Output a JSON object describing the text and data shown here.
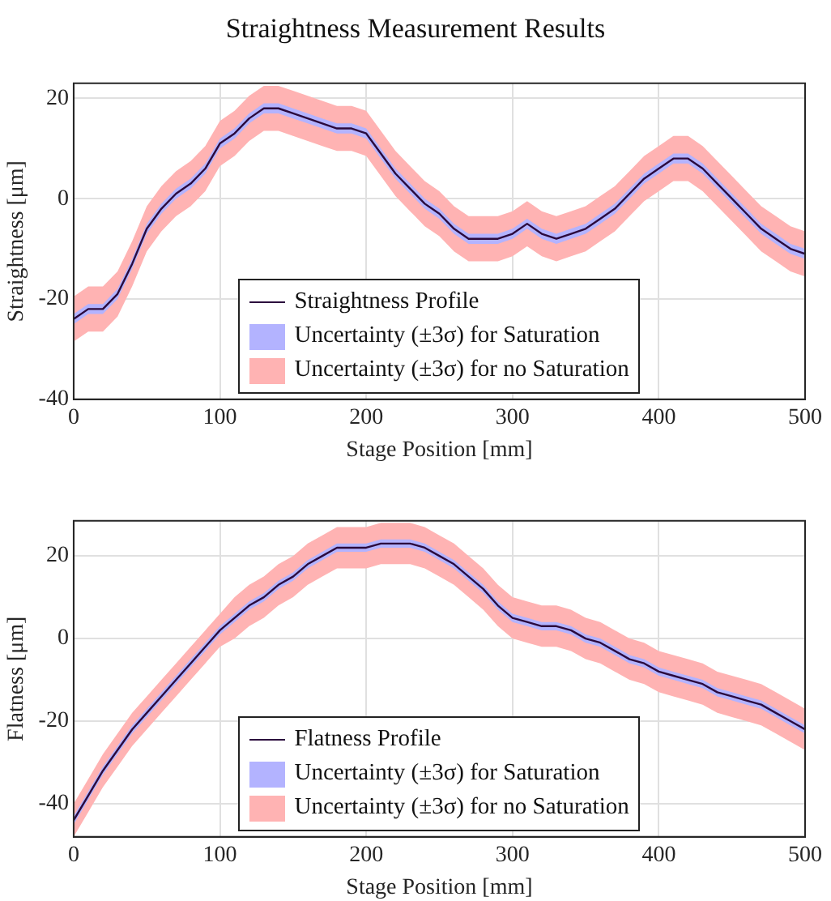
{
  "chart_data": [
    {
      "type": "line",
      "title": "Straightness Measurement Results",
      "xlabel": "Stage Position [mm]",
      "ylabel": "Straightness [μm]",
      "x": [
        0,
        10,
        20,
        30,
        40,
        50,
        60,
        70,
        80,
        90,
        100,
        110,
        120,
        130,
        140,
        150,
        160,
        170,
        180,
        190,
        200,
        210,
        220,
        230,
        240,
        250,
        260,
        270,
        280,
        290,
        300,
        310,
        320,
        330,
        340,
        350,
        360,
        370,
        380,
        390,
        400,
        410,
        420,
        430,
        440,
        450,
        460,
        470,
        480,
        490,
        500
      ],
      "xlim": [
        0,
        500
      ],
      "xticks": [
        0,
        100,
        200,
        300,
        400,
        500
      ],
      "ylim": [
        -40,
        23
      ],
      "yticks": [
        -40,
        -20,
        0,
        20
      ],
      "grid": true,
      "legend": "bottom",
      "marker": "none",
      "series": [
        {
          "name": "Straightness Profile",
          "type": "line",
          "color": "#2b0a3d",
          "values": [
            -24,
            -22,
            -22,
            -19,
            -13,
            -6,
            -2,
            1,
            3,
            6,
            11,
            13,
            16,
            18,
            18,
            17,
            16,
            15,
            14,
            14,
            13,
            9,
            5,
            2,
            -1,
            -3,
            -6,
            -8,
            -8,
            -8,
            -7,
            -5,
            -7,
            -8,
            -7,
            -6,
            -4,
            -2,
            1,
            4,
            6,
            8,
            8,
            6,
            3,
            0,
            -3,
            -6,
            -8,
            -10,
            -11
          ]
        },
        {
          "name": "Uncertainty (±3σ) for Saturation",
          "type": "line",
          "color": "#b3b3ff",
          "values": [
            null,
            null,
            null,
            null,
            null,
            null,
            null,
            null,
            null,
            null,
            null,
            null,
            null,
            null,
            null,
            null,
            null,
            null,
            null,
            null,
            null,
            null,
            null,
            null,
            null,
            null,
            null,
            null,
            null,
            null,
            null,
            null,
            null,
            null,
            null,
            null,
            null,
            null,
            null,
            null,
            null,
            null,
            null,
            null,
            null,
            null,
            null,
            null,
            null,
            null,
            null
          ],
          "lower": [
            -25,
            -23,
            -23,
            -20,
            -14,
            -7,
            -3,
            0,
            2,
            5,
            10,
            12,
            15,
            17,
            17,
            16,
            15,
            14,
            13,
            13,
            12,
            8,
            4,
            1,
            -2,
            -4,
            -7,
            -9,
            -9,
            -9,
            -8,
            -6,
            -8,
            -9,
            -8,
            -7,
            -5,
            -3,
            0,
            3,
            5,
            7,
            7,
            5,
            2,
            -1,
            -4,
            -7,
            -9,
            -11,
            -12
          ],
          "upper": [
            -23,
            -21,
            -21,
            -18,
            -12,
            -5,
            -1,
            2,
            4,
            7,
            12,
            14,
            17,
            19,
            19,
            18,
            17,
            16,
            15,
            15,
            14,
            10,
            6,
            3,
            0,
            -2,
            -5,
            -7,
            -7,
            -7,
            -6,
            -4,
            -6,
            -7,
            -6,
            -5,
            -3,
            -1,
            2,
            5,
            7,
            9,
            9,
            7,
            4,
            1,
            -2,
            -5,
            -7,
            -9,
            -10
          ]
        },
        {
          "name": "Uncertainty (±3σ) for no Saturation",
          "type": "line",
          "color": "#ffb3b3",
          "values": [
            null,
            null,
            null,
            null,
            null,
            null,
            null,
            null,
            null,
            null,
            null,
            null,
            null,
            null,
            null,
            null,
            null,
            null,
            null,
            null,
            null,
            null,
            null,
            null,
            null,
            null,
            null,
            null,
            null,
            null,
            null,
            null,
            null,
            null,
            null,
            null,
            null,
            null,
            null,
            null,
            null,
            null,
            null,
            null,
            null,
            null,
            null,
            null,
            null,
            null,
            null
          ],
          "lower": [
            -28.5,
            -26.5,
            -26.5,
            -23.5,
            -17.5,
            -10.5,
            -6.5,
            -3.5,
            -1.5,
            1.5,
            6.5,
            8.5,
            11.5,
            13.5,
            13.5,
            12.5,
            11.5,
            10.5,
            9.5,
            9.5,
            8.5,
            4.5,
            0.5,
            -2.5,
            -5.5,
            -7.5,
            -10.5,
            -12.5,
            -12.5,
            -12.5,
            -11.5,
            -9.5,
            -11.5,
            -12.5,
            -11.5,
            -10.5,
            -8.5,
            -6.5,
            -3.5,
            -0.5,
            1.5,
            3.5,
            3.5,
            1.5,
            -1.5,
            -4.5,
            -7.5,
            -10.5,
            -12.5,
            -14.5,
            -15.5
          ],
          "upper": [
            -19.5,
            -17.5,
            -17.5,
            -14.5,
            -8.5,
            -1.5,
            2.5,
            5.5,
            7.5,
            10.5,
            15.5,
            17.5,
            20.5,
            22.5,
            22.5,
            21.5,
            20.5,
            19.5,
            18.5,
            18.5,
            17.5,
            13.5,
            9.5,
            6.5,
            3.5,
            1.5,
            -1.5,
            -3.5,
            -3.5,
            -3.5,
            -2.5,
            -0.5,
            -2.5,
            -3.5,
            -2.5,
            -1.5,
            0.5,
            2.5,
            5.5,
            8.5,
            10.5,
            12.5,
            12.5,
            10.5,
            7.5,
            4.5,
            1.5,
            -1.5,
            -3.5,
            -5.5,
            -6.5
          ]
        }
      ]
    },
    {
      "type": "line",
      "xlabel": "Stage Position [mm]",
      "ylabel": "Flatness [μm]",
      "x": [
        0,
        10,
        20,
        30,
        40,
        50,
        60,
        70,
        80,
        90,
        100,
        110,
        120,
        130,
        140,
        150,
        160,
        170,
        180,
        190,
        200,
        210,
        220,
        230,
        240,
        250,
        260,
        270,
        280,
        290,
        300,
        310,
        320,
        330,
        340,
        350,
        360,
        370,
        380,
        390,
        400,
        410,
        420,
        430,
        440,
        450,
        460,
        470,
        480,
        490,
        500
      ],
      "xlim": [
        0,
        500
      ],
      "xticks": [
        0,
        100,
        200,
        300,
        400,
        500
      ],
      "ylim": [
        -48,
        28.5
      ],
      "yticks": [
        -40,
        -20,
        0,
        20
      ],
      "grid": true,
      "legend": "bottom",
      "marker": "none",
      "series": [
        {
          "name": "Flatness Profile",
          "type": "line",
          "color": "#2b0a3d",
          "values": [
            -44,
            -38,
            -32,
            -27,
            -22,
            -18,
            -14,
            -10,
            -6,
            -2,
            2,
            5,
            8,
            10,
            13,
            15,
            18,
            20,
            22,
            22,
            22,
            23,
            23,
            23,
            22,
            20,
            18,
            15,
            12,
            8,
            5,
            4,
            3,
            3,
            2,
            0,
            -1,
            -3,
            -5,
            -6,
            -8,
            -9,
            -10,
            -11,
            -13,
            -14,
            -15,
            -16,
            -18,
            -20,
            -22
          ]
        },
        {
          "name": "Uncertainty (±3σ) for Saturation",
          "type": "line",
          "color": "#b3b3ff",
          "values": [
            null,
            null,
            null,
            null,
            null,
            null,
            null,
            null,
            null,
            null,
            null,
            null,
            null,
            null,
            null,
            null,
            null,
            null,
            null,
            null,
            null,
            null,
            null,
            null,
            null,
            null,
            null,
            null,
            null,
            null,
            null,
            null,
            null,
            null,
            null,
            null,
            null,
            null,
            null,
            null,
            null,
            null,
            null,
            null,
            null,
            null,
            null,
            null,
            null,
            null,
            null
          ],
          "lower": [
            -45,
            -39,
            -33,
            -28,
            -23,
            -19,
            -15,
            -11,
            -7,
            -3,
            1,
            4,
            7,
            9,
            12,
            14,
            17,
            19,
            21,
            21,
            21,
            22,
            22,
            22,
            21,
            19,
            17,
            14,
            11,
            7,
            4,
            3,
            2,
            2,
            1,
            -1,
            -2,
            -4,
            -6,
            -7,
            -9,
            -10,
            -11,
            -12,
            -14,
            -15,
            -16,
            -17,
            -19,
            -21,
            -23
          ],
          "upper": [
            -43,
            -37,
            -31,
            -26,
            -21,
            -17,
            -13,
            -9,
            -5,
            -1,
            3,
            6,
            9,
            11,
            14,
            16,
            19,
            21,
            23,
            23,
            23,
            24,
            24,
            24,
            23,
            21,
            19,
            16,
            13,
            9,
            6,
            5,
            4,
            4,
            3,
            1,
            0,
            -2,
            -4,
            -5,
            -7,
            -8,
            -9,
            -10,
            -12,
            -13,
            -14,
            -15,
            -17,
            -19,
            -21
          ]
        },
        {
          "name": "Uncertainty (±3σ) for no Saturation",
          "type": "line",
          "color": "#ffb3b3",
          "values": [
            null,
            null,
            null,
            null,
            null,
            null,
            null,
            null,
            null,
            null,
            null,
            null,
            null,
            null,
            null,
            null,
            null,
            null,
            null,
            null,
            null,
            null,
            null,
            null,
            null,
            null,
            null,
            null,
            null,
            null,
            null,
            null,
            null,
            null,
            null,
            null,
            null,
            null,
            null,
            null,
            null,
            null,
            null,
            null,
            null,
            null,
            null,
            null,
            null,
            null,
            null
          ],
          "lower": [
            -48,
            -42,
            -36,
            -31,
            -26,
            -22,
            -18,
            -14,
            -10,
            -6,
            -2,
            0,
            3,
            5,
            8,
            10,
            13,
            15,
            17,
            17,
            17,
            18,
            18,
            18,
            17,
            15,
            13,
            10,
            7,
            3,
            0,
            -1,
            -2,
            -2,
            -3,
            -5,
            -6,
            -8,
            -10,
            -11,
            -13,
            -14,
            -15,
            -16,
            -18,
            -19,
            -20,
            -21,
            -23,
            -25,
            -27
          ],
          "upper": [
            -40,
            -34,
            -28,
            -23,
            -18,
            -14,
            -10,
            -6,
            -2,
            2,
            6,
            10,
            13,
            15,
            18,
            20,
            23,
            25,
            27,
            27,
            27,
            28,
            28,
            28,
            27,
            25,
            23,
            20,
            17,
            13,
            10,
            9,
            8,
            8,
            7,
            5,
            4,
            2,
            0,
            -1,
            -3,
            -4,
            -5,
            -6,
            -8,
            -9,
            -10,
            -11,
            -13,
            -15,
            -17
          ]
        }
      ]
    }
  ]
}
